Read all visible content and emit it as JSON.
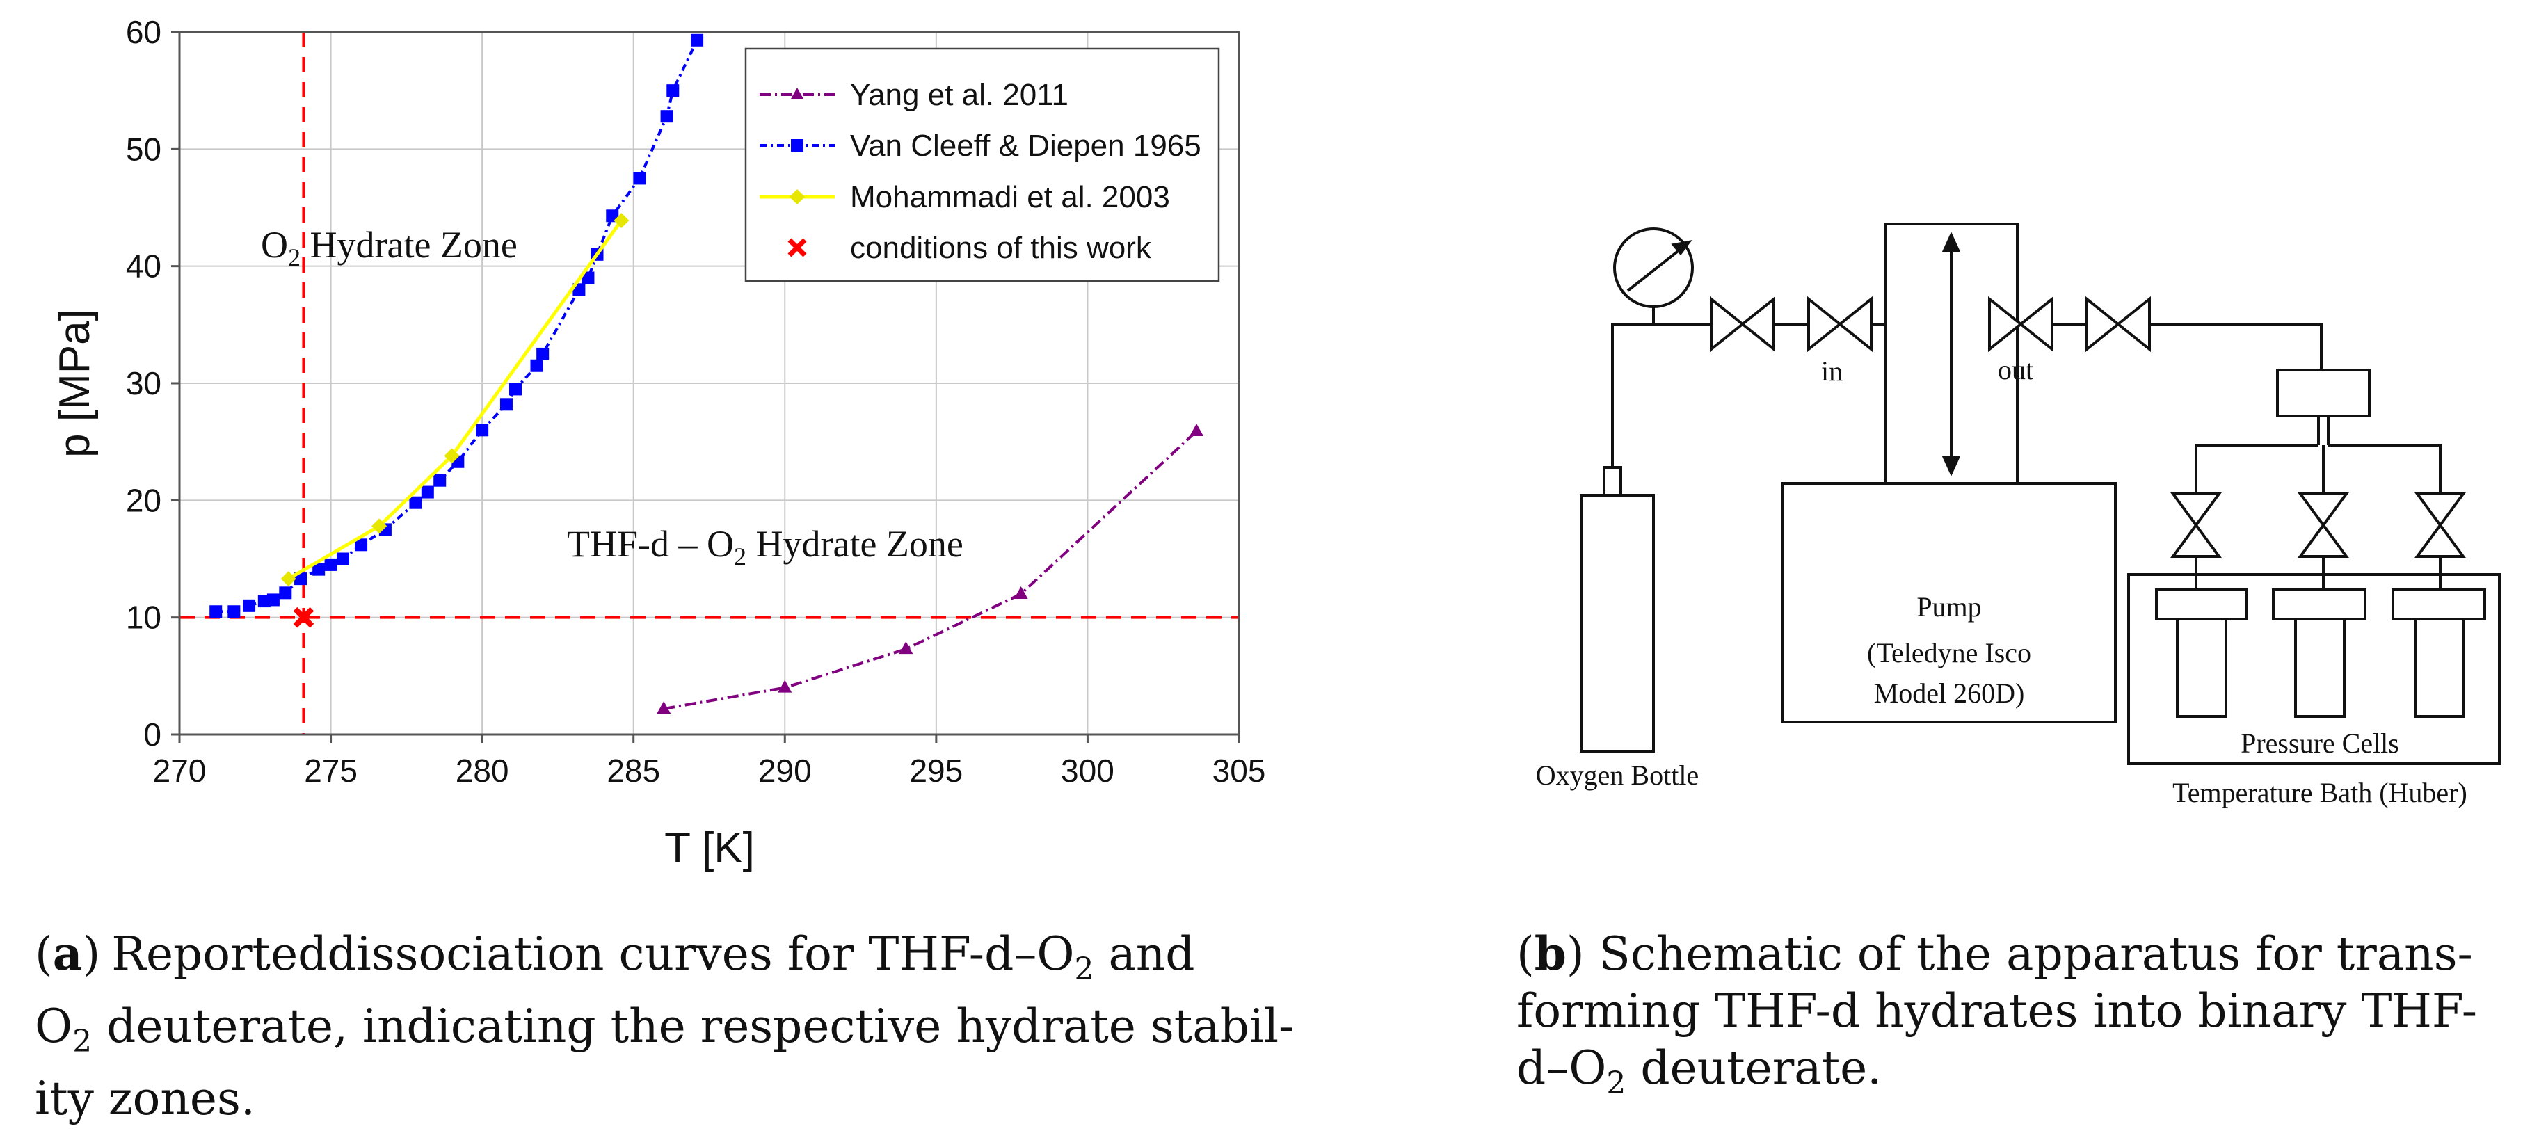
{
  "chart_data": {
    "type": "line",
    "xlabel": "T  [K]",
    "ylabel": "p [MPa]",
    "xlim": [
      270,
      305
    ],
    "ylim": [
      0,
      60
    ],
    "xticks": [
      "270",
      "275",
      "280",
      "285",
      "290",
      "295",
      "300",
      "305"
    ],
    "yticks": [
      "0",
      "10",
      "20",
      "30",
      "40",
      "50",
      "60"
    ],
    "grid": true,
    "legend_position": "top-right",
    "series": [
      {
        "name": "Yang et al. 2011",
        "color": "#800080",
        "marker": "triangle",
        "x": [
          286.0,
          290.0,
          294.0,
          297.8,
          303.6
        ],
        "y": [
          2.2,
          4.0,
          7.3,
          12.0,
          25.9
        ]
      },
      {
        "name": "Van Cleeff & Diepen 1965",
        "color": "#0000ff",
        "marker": "square",
        "x": [
          271.2,
          271.8,
          272.3,
          272.8,
          273.1,
          273.5,
          274.0,
          274.6,
          275.0,
          275.4,
          276.0,
          276.8,
          277.8,
          278.2,
          278.6,
          279.2,
          280.0,
          280.8,
          281.1,
          281.8,
          282.0,
          283.2,
          283.5,
          283.8,
          284.3,
          285.2,
          286.1,
          286.3,
          287.1
        ],
        "y": [
          10.5,
          10.5,
          11.0,
          11.4,
          11.5,
          12.1,
          13.3,
          14.1,
          14.5,
          15.0,
          16.2,
          17.5,
          19.8,
          20.7,
          21.7,
          23.3,
          26.0,
          28.2,
          29.5,
          31.5,
          32.5,
          38.0,
          39.0,
          41.0,
          44.3,
          47.5,
          52.8,
          55.0,
          59.3
        ]
      },
      {
        "name": "Mohammadi et al. 2003",
        "color": "#ffff00",
        "marker": "diamond",
        "x": [
          273.6,
          276.6,
          279.0,
          284.6
        ],
        "y": [
          13.3,
          17.8,
          23.8,
          43.9
        ]
      },
      {
        "name": "conditions of this work",
        "color": "#ff0000",
        "marker": "x",
        "x": [
          274.1
        ],
        "y": [
          10.0
        ]
      }
    ],
    "reference_lines": {
      "x": 274.1,
      "y": 10.0,
      "color": "#ff0000"
    },
    "annotations": [
      {
        "text_main": "O",
        "sub": "2",
        "text_rest": " Hydrate Zone",
        "x": 276.5,
        "y": 41
      },
      {
        "text_main": "THF-d – O",
        "sub": "2",
        "text_rest": " Hydrate Zone",
        "x": 288.5,
        "y": 15
      }
    ]
  },
  "schematic": {
    "labels": {
      "in": "in",
      "out": "out",
      "pump_line1": "Pump",
      "pump_line2": "(Teledyne Isco",
      "pump_line3": "Model 260D)",
      "oxygen_bottle": "Oxygen Bottle",
      "pressure_cells": "Pressure Cells",
      "temperature_bath": "Temperature Bath (Huber)"
    }
  },
  "captions": {
    "a": {
      "label": "a",
      "line1_pre": "Reporteddissociation curves for THF-d–O",
      "line1_sub": "2",
      "line1_post": " and",
      "line2_pre": "O",
      "line2_sub": "2",
      "line2_post": " deuterate, indicating the respective hydrate stabil-",
      "line3": "ity zones."
    },
    "b": {
      "label": "b",
      "line1_post": " Schematic of the apparatus for trans-",
      "line2": "forming THF-d hydrates into binary THF-",
      "line3_pre": "d–O",
      "line3_sub": "2",
      "line3_post": " deuterate."
    }
  }
}
